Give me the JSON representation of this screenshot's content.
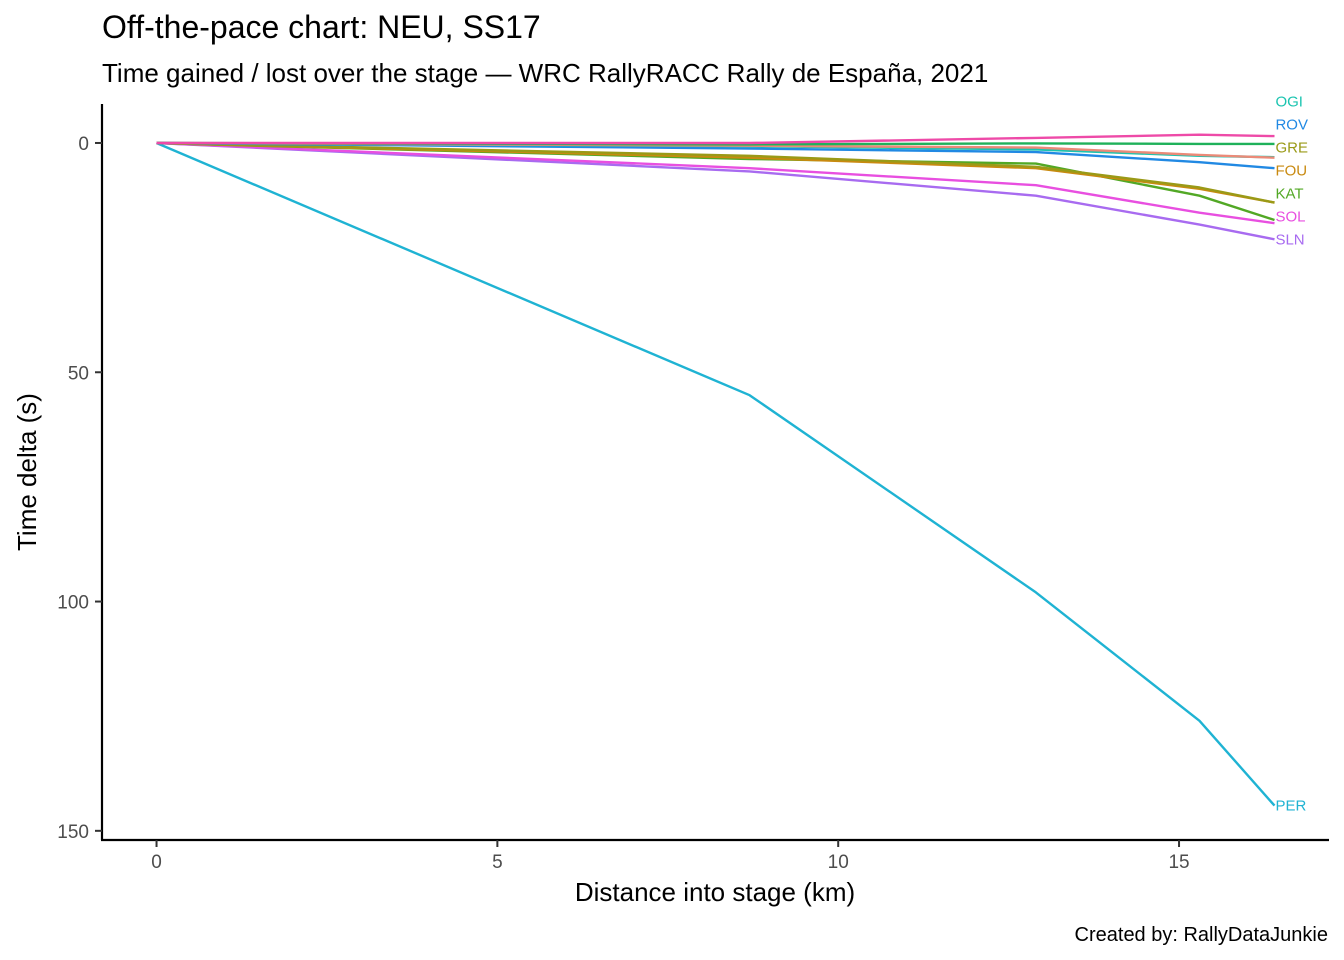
{
  "chart_data": {
    "type": "line",
    "title": "Off-the-pace chart: NEU, SS17",
    "subtitle": "Time gained / lost over the stage — WRC RallyRACC Rally de España, 2021",
    "xlabel": "Distance into stage (km)",
    "ylabel": "Time delta (s)",
    "caption": "Created by: RallyDataJunkie",
    "xlim": [
      -0.8,
      17.2
    ],
    "ylim": [
      -8.5,
      152
    ],
    "y_reversed": true,
    "grid": false,
    "legend": "none (direct line-end labels)",
    "x_ticks": [
      0,
      5,
      10,
      15
    ],
    "x_tick_labels": [
      "0",
      "5",
      "10",
      "15"
    ],
    "y_ticks": [
      0,
      50,
      100,
      150
    ],
    "y_tick_labels": [
      "0",
      "50",
      "100",
      "150"
    ],
    "series": [
      {
        "name": "PER",
        "color": "#1fb3d3",
        "x": [
          0,
          8.7,
          12.9,
          15.3,
          16.4
        ],
        "y": [
          0,
          55,
          98,
          126,
          144.5
        ],
        "label_y": 144.5
      },
      {
        "name": "SLN",
        "color": "#a86bf0",
        "x": [
          0,
          8.7,
          12.9,
          15.3,
          16.4
        ],
        "y": [
          0,
          6.2,
          11.5,
          17.8,
          21
        ],
        "label_y": 21
      },
      {
        "name": "SOL",
        "color": "#e84fe0",
        "x": [
          0,
          8.7,
          12.9,
          15.3,
          16.4
        ],
        "y": [
          0,
          5.5,
          9.2,
          15.2,
          17.5
        ],
        "label_y": 16
      },
      {
        "name": "KAT",
        "color": "#52a825",
        "x": [
          0,
          8.7,
          12.9,
          15.3,
          16.4
        ],
        "y": [
          0,
          3.5,
          4.5,
          11.5,
          16.8
        ],
        "label_y": 11
      },
      {
        "name": "FOU",
        "color": "#c98a10",
        "x": [
          0,
          8.7,
          12.9,
          15.3,
          16.4
        ],
        "y": [
          0,
          3.2,
          5.5,
          10,
          13
        ],
        "label_y": 6
      },
      {
        "name": "GRE",
        "color": "#9a9a17",
        "x": [
          0,
          8.7,
          12.9,
          15.3,
          16.4
        ],
        "y": [
          0,
          2.8,
          5.2,
          9.7,
          13
        ],
        "label_y": 1
      },
      {
        "name": "ROV",
        "color": "#2189e3",
        "x": [
          0,
          8.7,
          12.9,
          15.3,
          16.4
        ],
        "y": [
          0,
          1.2,
          2,
          4.2,
          5.5
        ],
        "label_y": -4
      },
      {
        "name": "OGI",
        "color": "#1bc4b0",
        "x": [
          0,
          8.7,
          12.9,
          15.3,
          16.4
        ],
        "y": [
          0,
          0.7,
          1.4,
          2.8,
          3.1
        ],
        "label_y": -9
      },
      {
        "name": "",
        "color": "#eb8a78",
        "x": [
          0,
          8.7,
          12.9,
          15.3,
          16.4
        ],
        "y": [
          0,
          0.6,
          1,
          2.6,
          3.2
        ],
        "label_y": null
      },
      {
        "name": "",
        "color": "#1fb15a",
        "x": [
          0,
          8.7,
          12.9,
          15.3,
          16.4
        ],
        "y": [
          0,
          0.3,
          0.1,
          0.2,
          0.2
        ],
        "label_y": null
      },
      {
        "name": "",
        "color": "#ee4aa8",
        "x": [
          0,
          8.7,
          12.9,
          15.3,
          16.4
        ],
        "y": [
          0,
          0,
          -1.1,
          -1.8,
          -1.5
        ],
        "label_y": null
      }
    ]
  }
}
